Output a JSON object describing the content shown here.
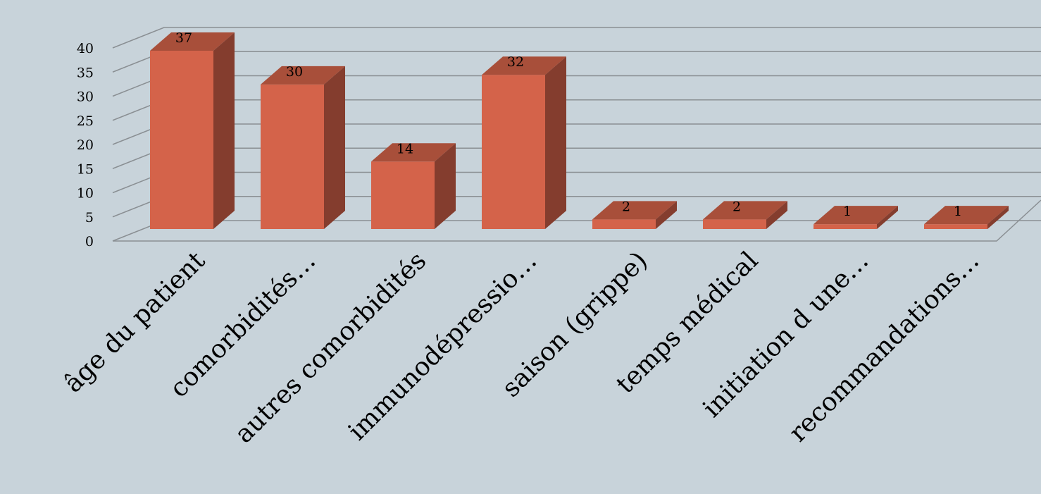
{
  "chart_data": {
    "type": "bar",
    "categories": [
      "âge du patient",
      "comorbidités…",
      "autres comorbidités",
      "immunodépressio…",
      "saison (grippe)",
      "temps médical",
      "initiation d une…",
      "recommandations…"
    ],
    "values": [
      37,
      30,
      14,
      32,
      2,
      2,
      1,
      1
    ],
    "ylim": [
      0,
      40
    ],
    "yticks": [
      0,
      5,
      10,
      15,
      20,
      25,
      30,
      35,
      40
    ],
    "title": "",
    "xlabel": "",
    "ylabel": "",
    "grid": true,
    "legend": "none",
    "style": "3d-column",
    "colors": {
      "front": "#d4634a",
      "top": "#a84f3a",
      "side": "#843d2e",
      "background": "#c8d3da",
      "grid": "#8a8f93"
    }
  }
}
